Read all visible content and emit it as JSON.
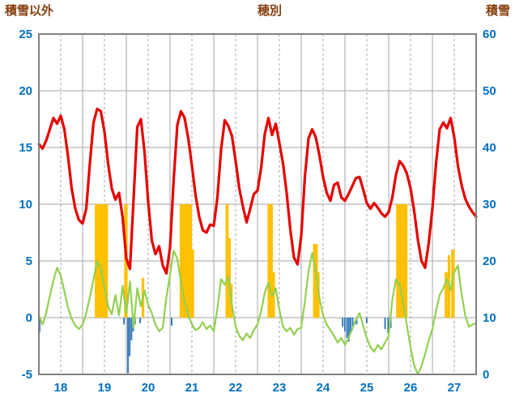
{
  "header": {
    "left_axis_title": "積雪以外",
    "chart_title": "穂別",
    "right_axis_title": "積雪"
  },
  "colors": {
    "red_line": "#e60000",
    "green_line": "#92d050",
    "sunshine_bar": "#ffc000",
    "precipitation_bar": "#2e75b6",
    "tick_label": "#0070c0",
    "title_text": "#843c0c",
    "grid": "#a6a6a6",
    "border": "#808080"
  },
  "chart_data": {
    "type": "line",
    "title": "穂別",
    "x_start": 18,
    "x_end": 28,
    "xticks": [
      18,
      19,
      20,
      21,
      22,
      23,
      24,
      25,
      26,
      27
    ],
    "yleft": {
      "title": "積雪以外",
      "min": -5,
      "max": 25,
      "ticks": [
        -5,
        0,
        5,
        10,
        15,
        20,
        25
      ]
    },
    "yright": {
      "title": "積雪",
      "min": 0,
      "max": 60,
      "ticks": [
        0,
        10,
        20,
        30,
        40,
        50,
        60
      ]
    },
    "grid": {
      "vertical_solid_step": 1,
      "vertical_dashed_step": 0.5
    },
    "series": {
      "red_line": {
        "type": "line",
        "color": "#e60000",
        "stroke_width": 3.2,
        "points_per_day": 12,
        "values": [
          15.3,
          14.9,
          15.6,
          16.6,
          17.6,
          17.1,
          17.8,
          16.6,
          14.2,
          11.4,
          9.6,
          8.6,
          8.3,
          9.6,
          13.6,
          17.2,
          18.4,
          18.2,
          16.4,
          13.6,
          11.4,
          10.4,
          11.0,
          8.8,
          5.2,
          4.3,
          10.5,
          16.8,
          17.5,
          14.6,
          10.2,
          6.8,
          5.6,
          6.3,
          4.6,
          3.9,
          6.2,
          12.2,
          17.0,
          18.2,
          17.6,
          15.8,
          13.4,
          10.8,
          8.9,
          7.7,
          7.5,
          8.2,
          8.1,
          10.6,
          14.8,
          17.4,
          16.9,
          16.0,
          13.8,
          11.4,
          9.8,
          8.4,
          9.6,
          10.9,
          11.2,
          13.2,
          16.2,
          17.6,
          16.1,
          17.1,
          15.4,
          13.6,
          11.0,
          7.8,
          5.3,
          4.7,
          7.2,
          12.4,
          15.8,
          16.6,
          15.9,
          14.3,
          12.4,
          11.0,
          10.3,
          11.7,
          11.9,
          10.6,
          10.3,
          10.9,
          11.6,
          12.3,
          12.4,
          11.3,
          10.1,
          9.6,
          10.1,
          9.7,
          9.2,
          8.9,
          9.3,
          10.6,
          12.6,
          13.8,
          13.4,
          12.7,
          11.4,
          9.4,
          6.9,
          5.0,
          4.4,
          6.6,
          9.6,
          13.6,
          16.6,
          17.2,
          16.7,
          17.6,
          15.9,
          13.4,
          11.7,
          10.5,
          9.8,
          9.3,
          8.9
        ]
      },
      "green_line": {
        "type": "line",
        "color": "#92d050",
        "stroke_width": 2.2,
        "points_per_day": 12,
        "values": [
          0.2,
          -0.6,
          0.4,
          1.9,
          3.3,
          4.4,
          3.7,
          2.3,
          0.9,
          -0.1,
          -0.7,
          -1.0,
          -0.6,
          0.4,
          1.8,
          3.4,
          5.0,
          4.4,
          2.7,
          1.0,
          0.3,
          2.0,
          0.2,
          2.8,
          0.4,
          3.2,
          -0.9,
          2.6,
          1.0,
          2.4,
          1.1,
          0.4,
          -0.6,
          -1.2,
          -0.9,
          1.8,
          3.8,
          5.9,
          5.2,
          3.1,
          1.4,
          0.2,
          -0.6,
          -1.1,
          -0.9,
          -0.4,
          -1.0,
          -0.7,
          -1.2,
          0.8,
          3.4,
          2.9,
          3.6,
          1.1,
          -0.8,
          -1.6,
          -2.0,
          -1.4,
          -1.8,
          -1.1,
          -0.6,
          0.6,
          2.2,
          3.1,
          1.9,
          2.6,
          0.7,
          -0.8,
          -1.2,
          -0.9,
          -1.5,
          -1.0,
          -0.9,
          1.4,
          4.1,
          5.7,
          4.1,
          1.7,
          0.2,
          -0.6,
          -1.1,
          -1.6,
          -2.2,
          -1.8,
          -2.4,
          -1.8,
          -1.0,
          -0.2,
          0.4,
          -0.7,
          -1.8,
          -2.6,
          -3.0,
          -2.4,
          -2.8,
          -2.2,
          -1.6,
          1.6,
          3.4,
          2.9,
          1.3,
          -0.7,
          -2.6,
          -4.2,
          -5.0,
          -4.3,
          -3.2,
          -2.0,
          -1.0,
          0.6,
          2.0,
          2.6,
          3.4,
          2.4,
          4.0,
          4.6,
          2.1,
          0.2,
          -0.8,
          -0.6,
          -0.5
        ]
      },
      "sunshine_bars": {
        "type": "bar",
        "color": "#ffc000",
        "bars": [
          {
            "x": 19.28,
            "w": 0.3,
            "h": 10
          },
          {
            "x": 19.95,
            "w": 0.08,
            "h": 10
          },
          {
            "x": 20.35,
            "w": 0.06,
            "h": 3.5
          },
          {
            "x": 21.22,
            "w": 0.28,
            "h": 10
          },
          {
            "x": 21.5,
            "w": 0.05,
            "h": 6
          },
          {
            "x": 22.27,
            "w": 0.07,
            "h": 10
          },
          {
            "x": 22.34,
            "w": 0.05,
            "h": 7
          },
          {
            "x": 22.39,
            "w": 0.04,
            "h": 3
          },
          {
            "x": 23.23,
            "w": 0.12,
            "h": 10
          },
          {
            "x": 23.35,
            "w": 0.05,
            "h": 4
          },
          {
            "x": 24.27,
            "w": 0.11,
            "h": 6.5
          },
          {
            "x": 24.38,
            "w": 0.04,
            "h": 4
          },
          {
            "x": 26.17,
            "w": 0.26,
            "h": 10
          },
          {
            "x": 27.28,
            "w": 0.07,
            "h": 4
          },
          {
            "x": 27.35,
            "w": 0.06,
            "h": 5.5
          },
          {
            "x": 27.43,
            "w": 0.08,
            "h": 6
          }
        ]
      },
      "precipitation_bars": {
        "type": "bar",
        "color": "#2e75b6",
        "bars": [
          {
            "x": 18.0,
            "w": 0.035,
            "h": -1.3
          },
          {
            "x": 19.93,
            "w": 0.035,
            "h": -0.6
          },
          {
            "x": 20.02,
            "w": 0.035,
            "h": -4.9
          },
          {
            "x": 20.06,
            "w": 0.035,
            "h": -3.4
          },
          {
            "x": 20.1,
            "w": 0.035,
            "h": -2.0
          },
          {
            "x": 20.14,
            "w": 0.035,
            "h": -1.2
          },
          {
            "x": 20.18,
            "w": 0.035,
            "h": -0.6
          },
          {
            "x": 20.3,
            "w": 0.035,
            "h": -0.5
          },
          {
            "x": 21.02,
            "w": 0.035,
            "h": -0.7
          },
          {
            "x": 24.93,
            "w": 0.035,
            "h": -0.8
          },
          {
            "x": 24.98,
            "w": 0.035,
            "h": -1.2
          },
          {
            "x": 25.03,
            "w": 0.035,
            "h": -1.8
          },
          {
            "x": 25.07,
            "w": 0.035,
            "h": -2.1
          },
          {
            "x": 25.11,
            "w": 0.035,
            "h": -1.4
          },
          {
            "x": 25.16,
            "w": 0.035,
            "h": -0.9
          },
          {
            "x": 25.25,
            "w": 0.035,
            "h": -0.6
          },
          {
            "x": 25.48,
            "w": 0.035,
            "h": -0.5
          },
          {
            "x": 25.9,
            "w": 0.035,
            "h": -1.0
          },
          {
            "x": 25.97,
            "w": 0.035,
            "h": -1.4
          },
          {
            "x": 26.03,
            "w": 0.035,
            "h": -0.9
          }
        ]
      }
    }
  }
}
